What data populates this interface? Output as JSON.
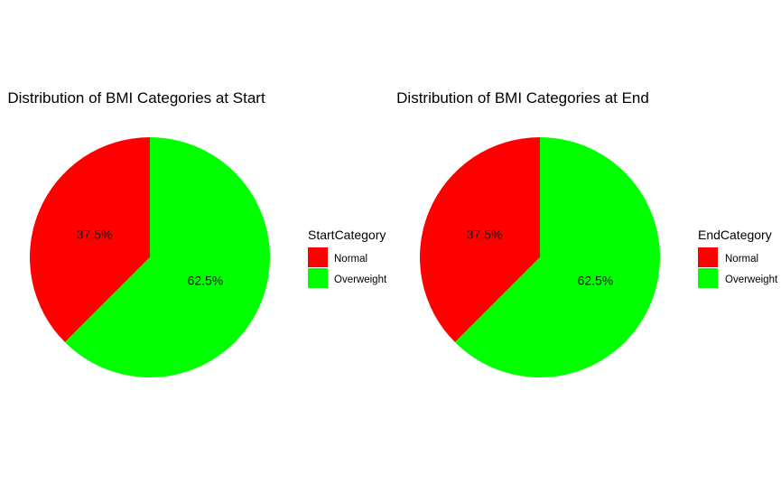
{
  "chart_data": [
    {
      "type": "pie",
      "title": "Distribution of BMI Categories at Start",
      "legend_title": "StartCategory",
      "legend_position": "right",
      "categories": [
        "Normal",
        "Overweight"
      ],
      "values": [
        37.5,
        62.5
      ],
      "labels": [
        "37.5%",
        "62.5%"
      ],
      "colors": [
        "#FF0000",
        "#00FF00"
      ]
    },
    {
      "type": "pie",
      "title": "Distribution of BMI Categories at End",
      "legend_title": "EndCategory",
      "legend_position": "right",
      "categories": [
        "Normal",
        "Overweight"
      ],
      "values": [
        37.5,
        62.5
      ],
      "labels": [
        "37.5%",
        "62.5%"
      ],
      "colors": [
        "#FF0000",
        "#00FF00"
      ]
    }
  ]
}
